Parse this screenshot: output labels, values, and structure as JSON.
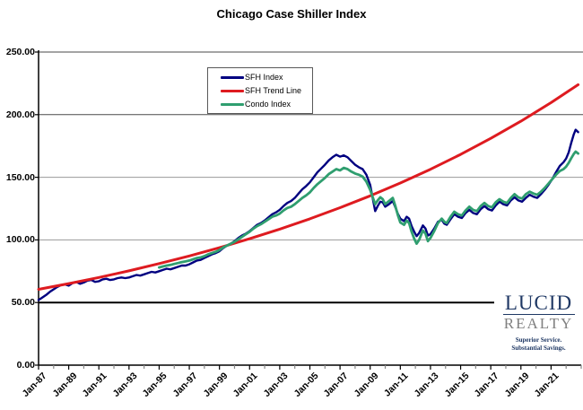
{
  "title": "Chicago Case Shiller Index",
  "logo": {
    "name_top": "LUCID",
    "name_bottom": "REALTY",
    "tagline_line1": "Superior Service.",
    "tagline_line2": "Substantial Savings.",
    "color_primary": "#1F3864",
    "color_secondary": "#808080"
  },
  "chart_data": {
    "type": "line",
    "title": "Chicago Case Shiller Index",
    "xlabel": "",
    "ylabel": "",
    "ylim": [
      0,
      250
    ],
    "y_tick_step": 50,
    "y_tick_labels": [
      "250.00",
      "200.00",
      "150.00",
      "100.00",
      "50.00",
      "0.00"
    ],
    "x_tick_labels": [
      "Jan-87",
      "Jan-89",
      "Jan-91",
      "Jan-93",
      "Jan-95",
      "Jan-97",
      "Jan-99",
      "Jan-01",
      "Jan-03",
      "Jan-05",
      "Jan-07",
      "Jan-09",
      "Jan-11",
      "Jan-13",
      "Jan-15",
      "Jan-17",
      "Jan-19",
      "Jan-21"
    ],
    "x_label_years": [
      1987,
      1989,
      1991,
      1993,
      1995,
      1997,
      1999,
      2001,
      2003,
      2005,
      2007,
      2009,
      2011,
      2013,
      2015,
      2017,
      2019,
      2021
    ],
    "x_range_years": [
      1987,
      2023
    ],
    "grid": "horizontal",
    "legend_position": "inside-top-left-of-center",
    "series": [
      {
        "name": "SFH Index",
        "color": "#000080",
        "width": 2.4,
        "points": [
          [
            1987.0,
            52
          ],
          [
            1987.25,
            54
          ],
          [
            1987.5,
            56
          ],
          [
            1987.75,
            58.5
          ],
          [
            1988.0,
            60.5
          ],
          [
            1988.25,
            62.5
          ],
          [
            1988.5,
            64
          ],
          [
            1988.75,
            64.5
          ],
          [
            1989.0,
            63.5
          ],
          [
            1989.25,
            65.5
          ],
          [
            1989.5,
            66.5
          ],
          [
            1989.75,
            65
          ],
          [
            1990.0,
            66
          ],
          [
            1990.25,
            67.5
          ],
          [
            1990.5,
            68
          ],
          [
            1990.75,
            66.5
          ],
          [
            1991.0,
            67
          ],
          [
            1991.25,
            68.5
          ],
          [
            1991.5,
            69
          ],
          [
            1991.75,
            68
          ],
          [
            1992.0,
            68.5
          ],
          [
            1992.25,
            69.5
          ],
          [
            1992.5,
            70
          ],
          [
            1992.75,
            69.5
          ],
          [
            1993.0,
            70
          ],
          [
            1993.25,
            71
          ],
          [
            1993.5,
            72
          ],
          [
            1993.75,
            71.5
          ],
          [
            1994.0,
            72.5
          ],
          [
            1994.25,
            73.5
          ],
          [
            1994.5,
            74.5
          ],
          [
            1994.75,
            74
          ],
          [
            1995.0,
            75
          ],
          [
            1995.25,
            76
          ],
          [
            1995.5,
            77
          ],
          [
            1995.75,
            76.5
          ],
          [
            1996.0,
            77.5
          ],
          [
            1996.25,
            78.5
          ],
          [
            1996.5,
            79.5
          ],
          [
            1996.75,
            79.5
          ],
          [
            1997.0,
            80.5
          ],
          [
            1997.25,
            82
          ],
          [
            1997.5,
            83.5
          ],
          [
            1997.75,
            84
          ],
          [
            1998.0,
            85.5
          ],
          [
            1998.25,
            87
          ],
          [
            1998.5,
            88.5
          ],
          [
            1998.75,
            89.5
          ],
          [
            1999.0,
            91
          ],
          [
            1999.25,
            93.5
          ],
          [
            1999.5,
            95.5
          ],
          [
            1999.75,
            97
          ],
          [
            2000.0,
            99
          ],
          [
            2000.25,
            101.5
          ],
          [
            2000.5,
            103.5
          ],
          [
            2000.75,
            105
          ],
          [
            2001.0,
            107
          ],
          [
            2001.25,
            109.5
          ],
          [
            2001.5,
            112
          ],
          [
            2001.75,
            113.5
          ],
          [
            2002.0,
            115.5
          ],
          [
            2002.25,
            118
          ],
          [
            2002.5,
            120.5
          ],
          [
            2002.75,
            122
          ],
          [
            2003.0,
            124
          ],
          [
            2003.25,
            127
          ],
          [
            2003.5,
            129.5
          ],
          [
            2003.75,
            131
          ],
          [
            2004.0,
            133.5
          ],
          [
            2004.25,
            137
          ],
          [
            2004.5,
            140.5
          ],
          [
            2004.75,
            143
          ],
          [
            2005.0,
            146
          ],
          [
            2005.25,
            150
          ],
          [
            2005.5,
            154
          ],
          [
            2005.75,
            157
          ],
          [
            2006.0,
            160
          ],
          [
            2006.25,
            163.5
          ],
          [
            2006.5,
            166
          ],
          [
            2006.75,
            168
          ],
          [
            2007.0,
            166.5
          ],
          [
            2007.25,
            167.5
          ],
          [
            2007.5,
            166
          ],
          [
            2007.75,
            163
          ],
          [
            2008.0,
            160
          ],
          [
            2008.25,
            158
          ],
          [
            2008.5,
            156.5
          ],
          [
            2008.75,
            152
          ],
          [
            2009.0,
            144
          ],
          [
            2009.17,
            133
          ],
          [
            2009.33,
            123
          ],
          [
            2009.5,
            127
          ],
          [
            2009.67,
            130.5
          ],
          [
            2009.83,
            130
          ],
          [
            2010.0,
            126.5
          ],
          [
            2010.25,
            128.5
          ],
          [
            2010.5,
            131
          ],
          [
            2010.67,
            126
          ],
          [
            2010.83,
            121
          ],
          [
            2011.0,
            117
          ],
          [
            2011.25,
            115
          ],
          [
            2011.42,
            118.5
          ],
          [
            2011.58,
            117
          ],
          [
            2011.75,
            111
          ],
          [
            2011.92,
            106.5
          ],
          [
            2012.08,
            103
          ],
          [
            2012.25,
            105.5
          ],
          [
            2012.5,
            111.5
          ],
          [
            2012.67,
            109
          ],
          [
            2012.83,
            103.5
          ],
          [
            2013.0,
            104.5
          ],
          [
            2013.25,
            109
          ],
          [
            2013.5,
            114.5
          ],
          [
            2013.75,
            116
          ],
          [
            2013.92,
            113
          ],
          [
            2014.08,
            112
          ],
          [
            2014.33,
            116.5
          ],
          [
            2014.58,
            120.5
          ],
          [
            2014.83,
            118.5
          ],
          [
            2015.08,
            117.5
          ],
          [
            2015.33,
            121.5
          ],
          [
            2015.58,
            124
          ],
          [
            2015.83,
            121.5
          ],
          [
            2016.08,
            120.5
          ],
          [
            2016.33,
            124.5
          ],
          [
            2016.58,
            127
          ],
          [
            2016.83,
            124.5
          ],
          [
            2017.08,
            123.5
          ],
          [
            2017.33,
            127.5
          ],
          [
            2017.58,
            130.5
          ],
          [
            2017.83,
            128.5
          ],
          [
            2018.08,
            127.5
          ],
          [
            2018.33,
            131.5
          ],
          [
            2018.58,
            134
          ],
          [
            2018.83,
            131.5
          ],
          [
            2019.08,
            130.5
          ],
          [
            2019.33,
            133.5
          ],
          [
            2019.58,
            136
          ],
          [
            2019.83,
            134.5
          ],
          [
            2020.08,
            133.5
          ],
          [
            2020.33,
            136.5
          ],
          [
            2020.58,
            140
          ],
          [
            2020.83,
            144
          ],
          [
            2021.08,
            148.5
          ],
          [
            2021.33,
            154
          ],
          [
            2021.58,
            159
          ],
          [
            2021.83,
            162
          ],
          [
            2022.0,
            165
          ],
          [
            2022.17,
            170
          ],
          [
            2022.33,
            177
          ],
          [
            2022.5,
            184
          ],
          [
            2022.63,
            188
          ],
          [
            2022.8,
            186
          ]
        ]
      },
      {
        "name": "SFH Trend Line",
        "color": "#DE1B20",
        "width": 3,
        "points": [
          [
            1987,
            60.5
          ],
          [
            1989,
            65.1
          ],
          [
            1991,
            70
          ],
          [
            1993,
            75.3
          ],
          [
            1995,
            81.1
          ],
          [
            1997,
            87.2
          ],
          [
            1999,
            93.8
          ],
          [
            2001,
            100.9
          ],
          [
            2003,
            108.6
          ],
          [
            2005,
            116.8
          ],
          [
            2007,
            125.7
          ],
          [
            2009,
            135.2
          ],
          [
            2011,
            145.4
          ],
          [
            2013,
            156.4
          ],
          [
            2015,
            168.3
          ],
          [
            2017,
            181.1
          ],
          [
            2019,
            194.8
          ],
          [
            2021,
            209.6
          ],
          [
            2022.8,
            223.9
          ]
        ]
      },
      {
        "name": "Condo Index",
        "color": "#2F9E6F",
        "width": 2.8,
        "points": [
          [
            1995.0,
            78
          ],
          [
            1995.25,
            78.8
          ],
          [
            1995.5,
            79.5
          ],
          [
            1995.75,
            80
          ],
          [
            1996.0,
            80.8
          ],
          [
            1996.25,
            81.5
          ],
          [
            1996.5,
            82.3
          ],
          [
            1996.75,
            82.8
          ],
          [
            1997.0,
            83.5
          ],
          [
            1997.25,
            84.5
          ],
          [
            1997.5,
            85.5
          ],
          [
            1997.75,
            86
          ],
          [
            1998.0,
            87
          ],
          [
            1998.25,
            88.5
          ],
          [
            1998.5,
            89.5
          ],
          [
            1998.75,
            90.5
          ],
          [
            1999.0,
            92
          ],
          [
            1999.25,
            94
          ],
          [
            1999.5,
            95.5
          ],
          [
            1999.75,
            97
          ],
          [
            2000.0,
            98.5
          ],
          [
            2000.25,
            100.5
          ],
          [
            2000.5,
            102.5
          ],
          [
            2000.75,
            104.5
          ],
          [
            2001.0,
            106.5
          ],
          [
            2001.25,
            109
          ],
          [
            2001.5,
            111
          ],
          [
            2001.75,
            112.5
          ],
          [
            2002.0,
            114.5
          ],
          [
            2002.25,
            116.5
          ],
          [
            2002.5,
            118.5
          ],
          [
            2002.75,
            119.5
          ],
          [
            2003.0,
            121
          ],
          [
            2003.25,
            123.5
          ],
          [
            2003.5,
            125.5
          ],
          [
            2003.75,
            126.5
          ],
          [
            2004.0,
            128.5
          ],
          [
            2004.25,
            131
          ],
          [
            2004.5,
            133.5
          ],
          [
            2004.75,
            135.5
          ],
          [
            2005.0,
            138
          ],
          [
            2005.25,
            141.5
          ],
          [
            2005.5,
            144.5
          ],
          [
            2005.75,
            147
          ],
          [
            2006.0,
            149.5
          ],
          [
            2006.25,
            152.5
          ],
          [
            2006.5,
            154.5
          ],
          [
            2006.75,
            156.5
          ],
          [
            2007.0,
            155.5
          ],
          [
            2007.25,
            157.5
          ],
          [
            2007.5,
            156.5
          ],
          [
            2007.75,
            154.5
          ],
          [
            2008.0,
            153
          ],
          [
            2008.25,
            152
          ],
          [
            2008.5,
            150.5
          ],
          [
            2008.75,
            146.5
          ],
          [
            2009.0,
            140
          ],
          [
            2009.17,
            134
          ],
          [
            2009.33,
            128.5
          ],
          [
            2009.5,
            131.5
          ],
          [
            2009.67,
            134
          ],
          [
            2009.83,
            132.5
          ],
          [
            2010.0,
            128.5
          ],
          [
            2010.25,
            131
          ],
          [
            2010.5,
            133.5
          ],
          [
            2010.67,
            127
          ],
          [
            2010.83,
            120
          ],
          [
            2011.0,
            114
          ],
          [
            2011.25,
            112
          ],
          [
            2011.42,
            115.5
          ],
          [
            2011.58,
            113.5
          ],
          [
            2011.75,
            106.5
          ],
          [
            2011.92,
            101
          ],
          [
            2012.08,
            97
          ],
          [
            2012.25,
            100
          ],
          [
            2012.5,
            107.5
          ],
          [
            2012.67,
            105
          ],
          [
            2012.83,
            99
          ],
          [
            2013.0,
            101.5
          ],
          [
            2013.25,
            107
          ],
          [
            2013.5,
            113.5
          ],
          [
            2013.75,
            117
          ],
          [
            2013.92,
            114.5
          ],
          [
            2014.08,
            113.5
          ],
          [
            2014.33,
            118.5
          ],
          [
            2014.58,
            122.5
          ],
          [
            2014.83,
            120.5
          ],
          [
            2015.08,
            119.5
          ],
          [
            2015.33,
            123.5
          ],
          [
            2015.58,
            126.5
          ],
          [
            2015.83,
            124
          ],
          [
            2016.08,
            123
          ],
          [
            2016.33,
            127
          ],
          [
            2016.58,
            129.5
          ],
          [
            2016.83,
            127
          ],
          [
            2017.08,
            126
          ],
          [
            2017.33,
            130
          ],
          [
            2017.58,
            132.5
          ],
          [
            2017.83,
            130.5
          ],
          [
            2018.08,
            129.5
          ],
          [
            2018.33,
            133.5
          ],
          [
            2018.58,
            136.5
          ],
          [
            2018.83,
            134
          ],
          [
            2019.08,
            133
          ],
          [
            2019.33,
            136.5
          ],
          [
            2019.58,
            138.5
          ],
          [
            2019.83,
            137
          ],
          [
            2020.08,
            136
          ],
          [
            2020.33,
            138.5
          ],
          [
            2020.58,
            141.5
          ],
          [
            2020.83,
            145
          ],
          [
            2021.08,
            148.5
          ],
          [
            2021.33,
            152
          ],
          [
            2021.58,
            155
          ],
          [
            2021.83,
            156.5
          ],
          [
            2022.0,
            158.5
          ],
          [
            2022.17,
            161.5
          ],
          [
            2022.33,
            165
          ],
          [
            2022.5,
            168.5
          ],
          [
            2022.63,
            170.5
          ],
          [
            2022.8,
            169
          ]
        ]
      }
    ]
  }
}
